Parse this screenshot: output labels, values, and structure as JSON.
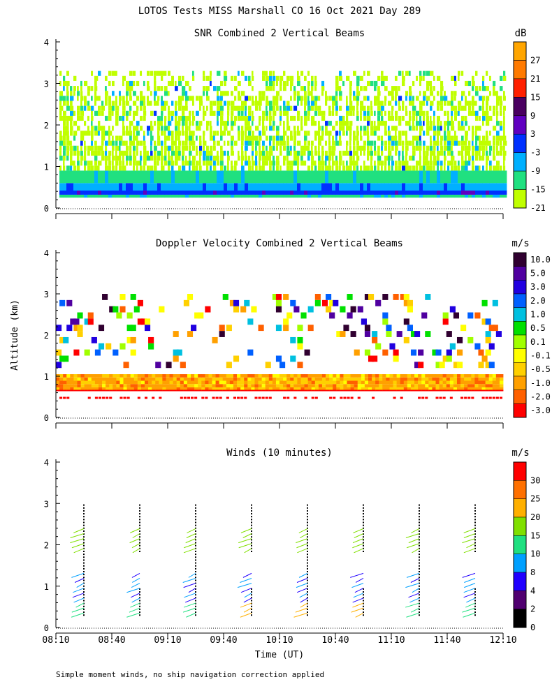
{
  "main_title": "LOTOS Tests MISS Marshall CO  16 Oct 2021 Day 289",
  "ylabel": "Altitude (km)",
  "xlabel": "Time (UT)",
  "footnote": "Simple moment winds, no ship navigation correction applied",
  "x_ticks": [
    "08:10",
    "08:40",
    "09:10",
    "09:40",
    "10:10",
    "10:40",
    "11:10",
    "11:40",
    "12:10"
  ],
  "chart_data": [
    {
      "type": "heatmap",
      "title": "SNR Combined 2 Vertical Beams",
      "ylim": [
        0,
        4
      ],
      "yticks": [
        "0",
        "1",
        "2",
        "3",
        "4"
      ],
      "colorbar_unit": "dB",
      "colorbar_labels": [
        "27",
        "21",
        "15",
        "9",
        "3",
        "-3",
        "-9",
        "-15",
        "-21"
      ],
      "colors": [
        "#ffa500",
        "#ff7a00",
        "#ff2000",
        "#4a0060",
        "#6000c0",
        "#0030ff",
        "#00b0ff",
        "#20e080",
        "#c0ff00"
      ]
    },
    {
      "type": "heatmap",
      "title": "Doppler Velocity Combined 2 Vertical Beams",
      "ylim": [
        0,
        4
      ],
      "yticks": [
        "0",
        "1",
        "2",
        "3",
        "4"
      ],
      "colorbar_unit": "m/s",
      "colorbar_labels": [
        "10.0",
        "5.0",
        "3.0",
        "2.0",
        "1.0",
        "0.5",
        "0.1",
        "-0.1",
        "-0.5",
        "-1.0",
        "-2.0",
        "-3.0"
      ],
      "colors": [
        "#300030",
        "#5000a0",
        "#2000e0",
        "#0060ff",
        "#00c0e0",
        "#00e000",
        "#a0ff00",
        "#ffff00",
        "#ffd000",
        "#ffa000",
        "#ff6000",
        "#ff0000"
      ]
    },
    {
      "type": "scatter",
      "title": "Winds (10 minutes)",
      "ylim": [
        0,
        4
      ],
      "yticks": [
        "0",
        "1",
        "2",
        "3",
        "4"
      ],
      "colorbar_unit": "m/s",
      "colorbar_labels": [
        "30",
        "25",
        "20",
        "15",
        "10",
        "8",
        "4",
        "2",
        "0"
      ],
      "colors": [
        "#ff0000",
        "#ff7000",
        "#ffb000",
        "#80e000",
        "#20e080",
        "#00a0ff",
        "#2000ff",
        "#500070",
        "#000000"
      ],
      "profile_times": [
        "08:30",
        "09:00",
        "09:30",
        "10:00",
        "10:30",
        "11:00",
        "11:30",
        "12:00"
      ]
    }
  ]
}
